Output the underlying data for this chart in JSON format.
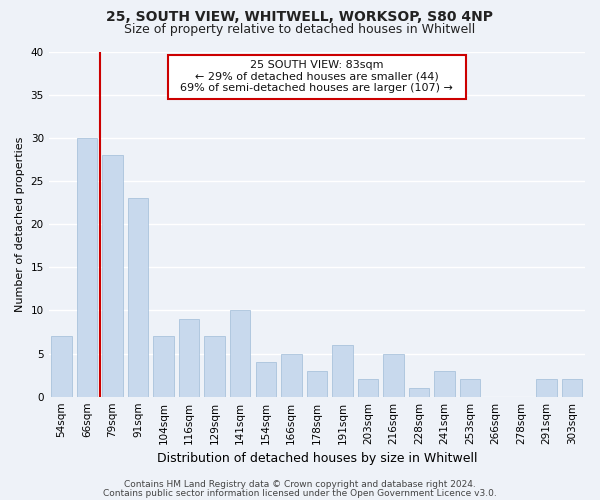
{
  "title1": "25, SOUTH VIEW, WHITWELL, WORKSOP, S80 4NP",
  "title2": "Size of property relative to detached houses in Whitwell",
  "xlabel": "Distribution of detached houses by size in Whitwell",
  "ylabel": "Number of detached properties",
  "bar_labels": [
    "54sqm",
    "66sqm",
    "79sqm",
    "91sqm",
    "104sqm",
    "116sqm",
    "129sqm",
    "141sqm",
    "154sqm",
    "166sqm",
    "178sqm",
    "191sqm",
    "203sqm",
    "216sqm",
    "228sqm",
    "241sqm",
    "253sqm",
    "266sqm",
    "278sqm",
    "291sqm",
    "303sqm"
  ],
  "bar_values": [
    7,
    30,
    28,
    23,
    7,
    9,
    7,
    10,
    4,
    5,
    3,
    6,
    2,
    5,
    1,
    3,
    2,
    0,
    0,
    2,
    2
  ],
  "bar_color": "#c8d9ed",
  "bar_edge_color": "#a0bcd8",
  "annotation_title": "25 SOUTH VIEW: 83sqm",
  "annotation_line1": "← 29% of detached houses are smaller (44)",
  "annotation_line2": "69% of semi-detached houses are larger (107) →",
  "annotation_box_facecolor": "#ffffff",
  "annotation_box_edgecolor": "#cc0000",
  "red_line_color": "#cc0000",
  "ylim": [
    0,
    40
  ],
  "yticks": [
    0,
    5,
    10,
    15,
    20,
    25,
    30,
    35,
    40
  ],
  "footer1": "Contains HM Land Registry data © Crown copyright and database right 2024.",
  "footer2": "Contains public sector information licensed under the Open Government Licence v3.0.",
  "background_color": "#eef2f8",
  "grid_color": "#ffffff",
  "title1_fontsize": 10,
  "title2_fontsize": 9,
  "xlabel_fontsize": 9,
  "ylabel_fontsize": 8,
  "tick_fontsize": 7.5,
  "annotation_fontsize": 8,
  "footer_fontsize": 6.5
}
